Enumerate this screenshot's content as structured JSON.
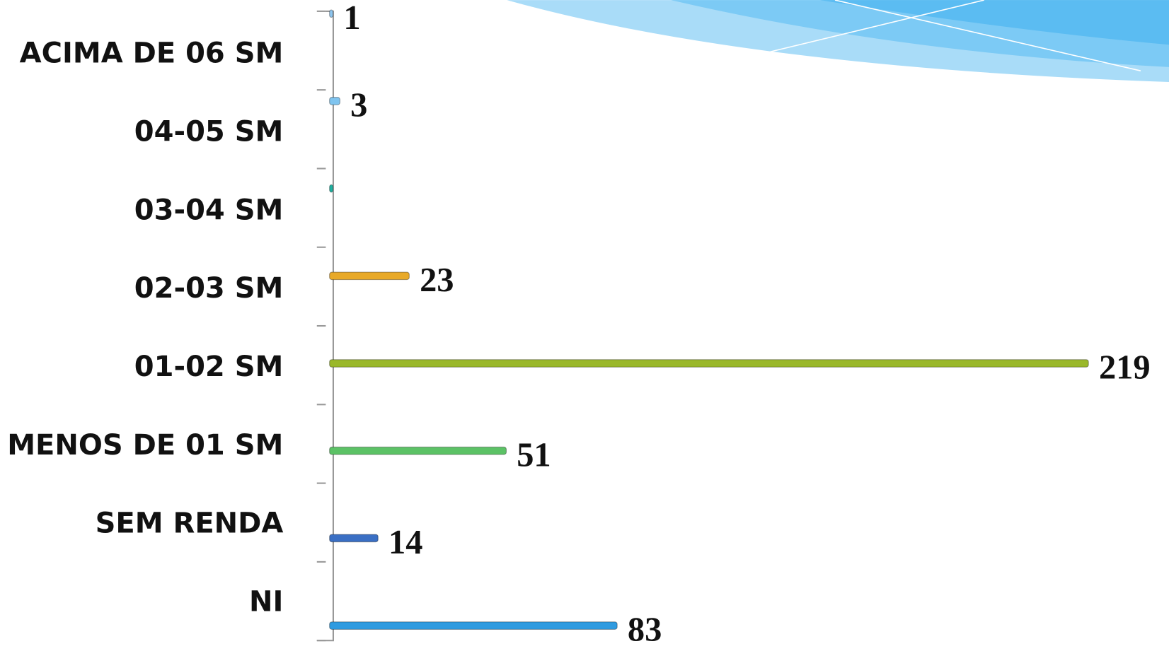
{
  "chart_data": {
    "type": "bar",
    "orientation": "horizontal",
    "categories": [
      "NI",
      "SEM RENDA",
      "MENOS DE 01 SM",
      "01-02 SM",
      "02-03 SM",
      "03-04 SM",
      "04-05 SM",
      "ACIMA DE 06 SM"
    ],
    "values": [
      83,
      14,
      51,
      219,
      23,
      1,
      3,
      1
    ],
    "value_labels": [
      "83",
      "14",
      "51",
      "219",
      "23",
      null,
      "3",
      "1"
    ],
    "colors": [
      "#2f9be0",
      "#3a6fc4",
      "#5cc266",
      "#9ab82a",
      "#e8a928",
      "#1fb0a0",
      "#7fc4ef",
      "#8ec5ee"
    ]
  }
}
